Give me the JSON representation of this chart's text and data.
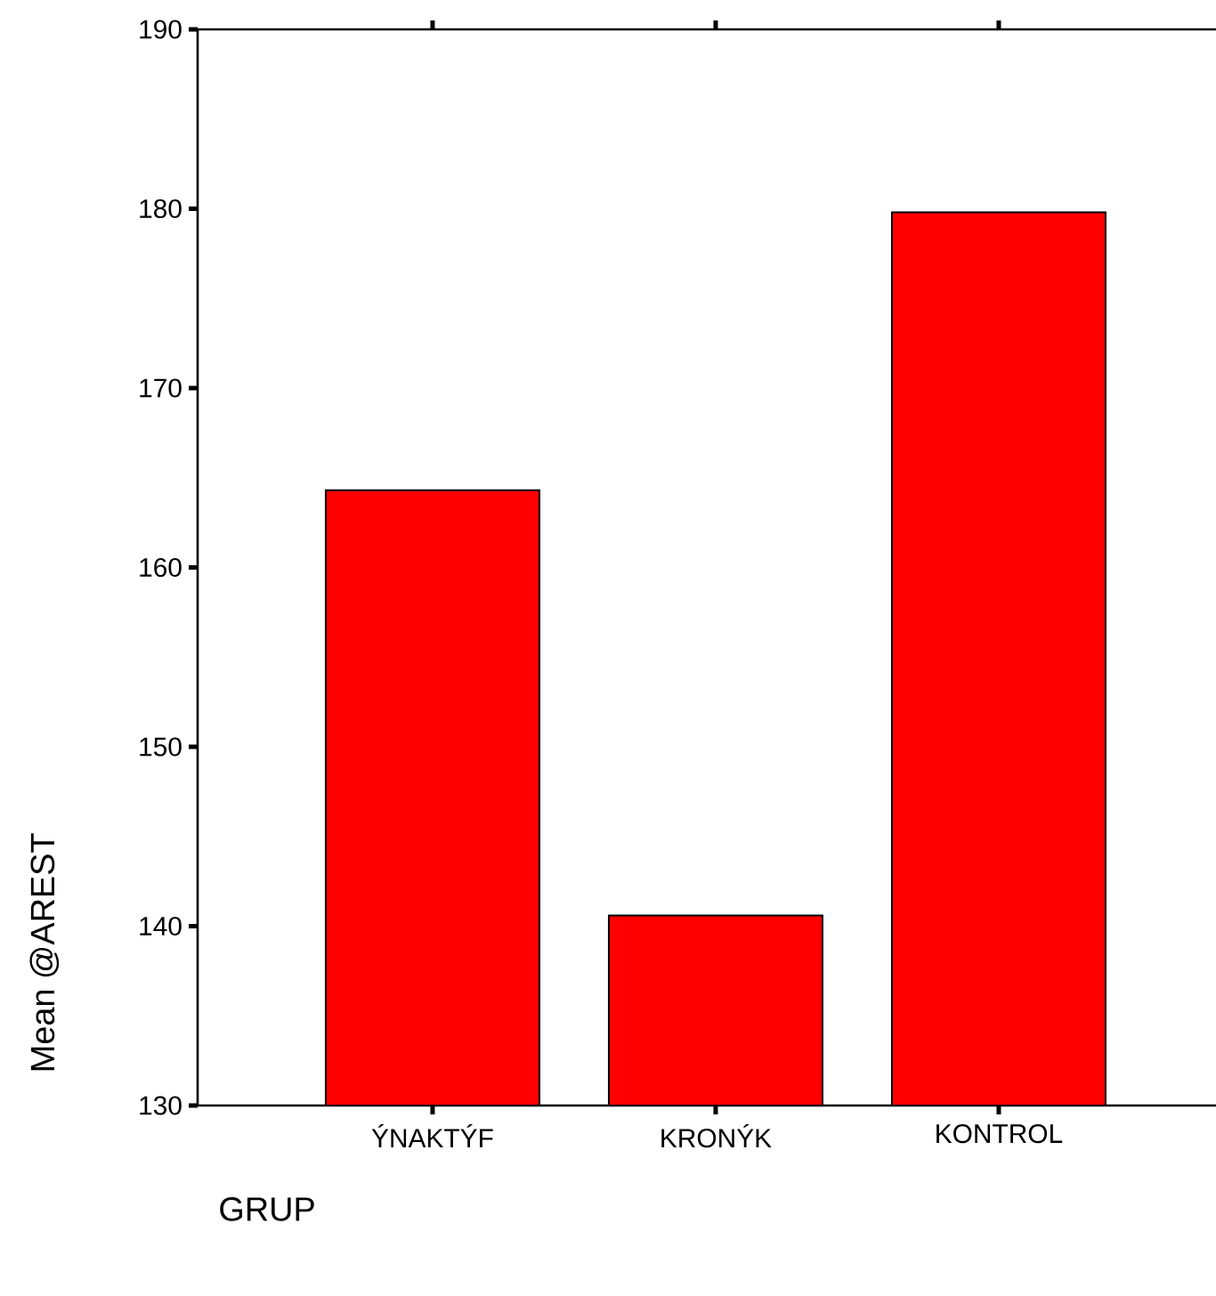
{
  "chart_data": {
    "type": "bar",
    "xlabel": "GRUP",
    "ylabel": "Mean @AREST",
    "categories": [
      "ÝNAKTÝF",
      "KRONÝK",
      "KONTROL"
    ],
    "values": [
      164.3,
      140.6,
      179.8
    ],
    "color": "#ff0000",
    "ylim": [
      130,
      190
    ],
    "yticks": [
      130,
      140,
      150,
      160,
      170,
      180,
      190
    ],
    "grid": false
  }
}
